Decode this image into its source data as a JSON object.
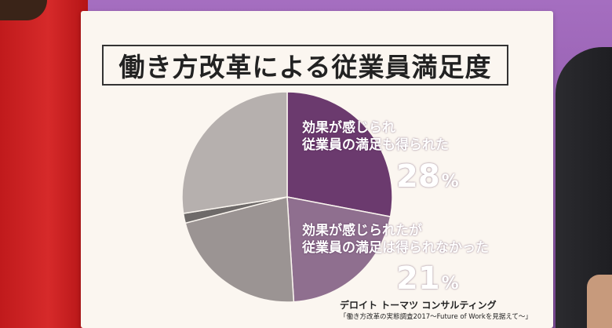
{
  "title": "働き方改革による従業員満足度",
  "chart_data": {
    "type": "pie",
    "title": "働き方改革による従業員満足度",
    "slices": [
      {
        "label": "効果が感じられ従業員の満足も得られた",
        "lines": [
          "効果が感じられ",
          "従業員の満足も得られた"
        ],
        "value": 28,
        "display": "28",
        "unit": "%",
        "color": "#6b3a6e"
      },
      {
        "label": "効果が感じられたが従業員の満足は得られなかった",
        "lines": [
          "効果が感じられたが",
          "従業員の満足は得られなかった"
        ],
        "value": 21,
        "display": "21",
        "unit": "%",
        "color": "#8f6f8f"
      },
      {
        "label": "",
        "value": 22,
        "color": "#9b9493"
      },
      {
        "label": "",
        "value": 1.5,
        "color": "#6e6a69"
      },
      {
        "label": "",
        "value": 27.5,
        "color": "#b6b0ae"
      }
    ]
  },
  "source": {
    "org": "デロイト トーマツ コンサルティング",
    "report": "「働き方改革の実態調査2017～Future of Workを見据えて～」"
  }
}
